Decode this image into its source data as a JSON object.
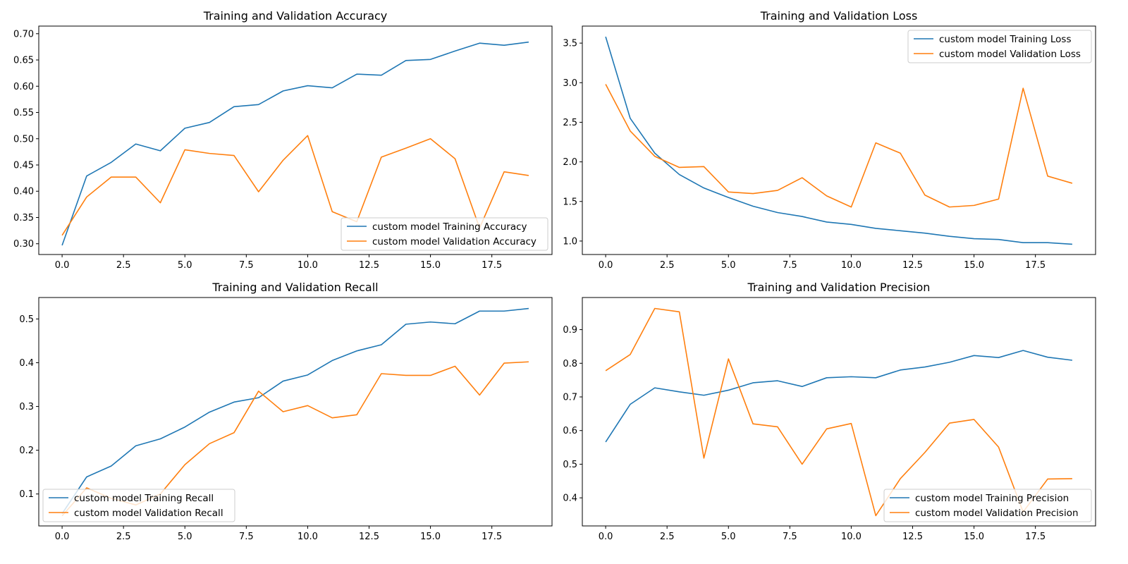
{
  "colors": {
    "training": "#1f77b4",
    "validation": "#ff7f0e"
  },
  "chart_data": [
    {
      "type": "line",
      "title": "Training and Validation Accuracy",
      "x": [
        0,
        1,
        2,
        3,
        4,
        5,
        6,
        7,
        8,
        9,
        10,
        11,
        12,
        13,
        14,
        15,
        16,
        17,
        18,
        19
      ],
      "xlim": [
        -0.95,
        19.95
      ],
      "ylim": [
        0.2795,
        0.7145
      ],
      "xticks": [
        0,
        2.5,
        5,
        7.5,
        10,
        12.5,
        15,
        17.5
      ],
      "xtick_labels": [
        "0.0",
        "2.5",
        "5.0",
        "7.5",
        "10.0",
        "12.5",
        "15.0",
        "17.5"
      ],
      "yticks": [
        0.3,
        0.35,
        0.4,
        0.45,
        0.5,
        0.55,
        0.6,
        0.65,
        0.7
      ],
      "ytick_labels": [
        "0.30",
        "0.35",
        "0.40",
        "0.45",
        "0.50",
        "0.55",
        "0.60",
        "0.65",
        "0.70"
      ],
      "legend_position": "lower-right",
      "series": [
        {
          "name": "custom model Training Accuracy",
          "role": "training",
          "values": [
            0.297,
            0.429,
            0.455,
            0.49,
            0.477,
            0.52,
            0.531,
            0.561,
            0.565,
            0.591,
            0.601,
            0.597,
            0.623,
            0.621,
            0.649,
            0.651,
            0.667,
            0.682,
            0.678,
            0.684
          ]
        },
        {
          "name": "custom model Validation Accuracy",
          "role": "validation",
          "values": [
            0.316,
            0.389,
            0.427,
            0.427,
            0.378,
            0.479,
            0.472,
            0.468,
            0.399,
            0.459,
            0.506,
            0.361,
            0.342,
            0.465,
            0.482,
            0.5,
            0.462,
            0.33,
            0.437,
            0.43
          ]
        }
      ]
    },
    {
      "type": "line",
      "title": "Training and Validation Loss",
      "x": [
        0,
        1,
        2,
        3,
        4,
        5,
        6,
        7,
        8,
        9,
        10,
        11,
        12,
        13,
        14,
        15,
        16,
        17,
        18,
        19
      ],
      "xlim": [
        -0.95,
        19.95
      ],
      "ylim": [
        0.83,
        3.715
      ],
      "xticks": [
        0,
        2.5,
        5,
        7.5,
        10,
        12.5,
        15,
        17.5
      ],
      "xtick_labels": [
        "0.0",
        "2.5",
        "5.0",
        "7.5",
        "10.0",
        "12.5",
        "15.0",
        "17.5"
      ],
      "yticks": [
        1.0,
        1.5,
        2.0,
        2.5,
        3.0,
        3.5
      ],
      "ytick_labels": [
        "1.0",
        "1.5",
        "2.0",
        "2.5",
        "3.0",
        "3.5"
      ],
      "legend_position": "upper-right",
      "series": [
        {
          "name": "custom model Training Loss",
          "role": "training",
          "values": [
            3.58,
            2.55,
            2.11,
            1.84,
            1.67,
            1.55,
            1.44,
            1.36,
            1.31,
            1.24,
            1.21,
            1.16,
            1.13,
            1.1,
            1.06,
            1.03,
            1.02,
            0.98,
            0.98,
            0.96
          ]
        },
        {
          "name": "custom model Validation Loss",
          "role": "validation",
          "values": [
            2.98,
            2.39,
            2.07,
            1.93,
            1.94,
            1.62,
            1.6,
            1.64,
            1.8,
            1.57,
            1.43,
            2.24,
            2.11,
            1.58,
            1.43,
            1.45,
            1.53,
            2.93,
            1.82,
            1.73
          ]
        }
      ]
    },
    {
      "type": "line",
      "title": "Training and Validation Recall",
      "x": [
        0,
        1,
        2,
        3,
        4,
        5,
        6,
        7,
        8,
        9,
        10,
        11,
        12,
        13,
        14,
        15,
        16,
        17,
        18,
        19
      ],
      "xlim": [
        -0.95,
        19.95
      ],
      "ylim": [
        0.027,
        0.549
      ],
      "xticks": [
        0,
        2.5,
        5,
        7.5,
        10,
        12.5,
        15,
        17.5
      ],
      "xtick_labels": [
        "0.0",
        "2.5",
        "5.0",
        "7.5",
        "10.0",
        "12.5",
        "15.0",
        "17.5"
      ],
      "yticks": [
        0.1,
        0.2,
        0.3,
        0.4,
        0.5
      ],
      "ytick_labels": [
        "0.1",
        "0.2",
        "0.3",
        "0.4",
        "0.5"
      ],
      "legend_position": "lower-left",
      "series": [
        {
          "name": "custom model Training Recall",
          "role": "training",
          "values": [
            0.055,
            0.139,
            0.164,
            0.21,
            0.226,
            0.253,
            0.287,
            0.31,
            0.32,
            0.358,
            0.372,
            0.405,
            0.427,
            0.441,
            0.488,
            0.493,
            0.489,
            0.518,
            0.518,
            0.524
          ]
        },
        {
          "name": "custom model Validation Recall",
          "role": "validation",
          "values": [
            0.05,
            0.114,
            0.09,
            0.075,
            0.1,
            0.167,
            0.215,
            0.24,
            0.335,
            0.288,
            0.302,
            0.274,
            0.281,
            0.375,
            0.371,
            0.371,
            0.392,
            0.326,
            0.399,
            0.402
          ]
        }
      ]
    },
    {
      "type": "line",
      "title": "Training and Validation Precision",
      "x": [
        0,
        1,
        2,
        3,
        4,
        5,
        6,
        7,
        8,
        9,
        10,
        11,
        12,
        13,
        14,
        15,
        16,
        17,
        18,
        19
      ],
      "xlim": [
        -0.95,
        19.95
      ],
      "ylim": [
        0.3165,
        0.9955
      ],
      "xticks": [
        0,
        2.5,
        5,
        7.5,
        10,
        12.5,
        15,
        17.5
      ],
      "xtick_labels": [
        "0.0",
        "2.5",
        "5.0",
        "7.5",
        "10.0",
        "12.5",
        "15.0",
        "17.5"
      ],
      "yticks": [
        0.4,
        0.5,
        0.6,
        0.7,
        0.8,
        0.9
      ],
      "ytick_labels": [
        "0.4",
        "0.5",
        "0.6",
        "0.7",
        "0.8",
        "0.9"
      ],
      "legend_position": "lower-right",
      "series": [
        {
          "name": "custom model Training Precision",
          "role": "training",
          "values": [
            0.566,
            0.678,
            0.727,
            0.715,
            0.705,
            0.72,
            0.742,
            0.748,
            0.731,
            0.757,
            0.76,
            0.757,
            0.78,
            0.789,
            0.803,
            0.823,
            0.817,
            0.838,
            0.818,
            0.809
          ]
        },
        {
          "name": "custom model Validation Precision",
          "role": "validation",
          "values": [
            0.778,
            0.826,
            0.963,
            0.953,
            0.518,
            0.813,
            0.62,
            0.611,
            0.5,
            0.605,
            0.621,
            0.347,
            0.457,
            0.535,
            0.622,
            0.633,
            0.551,
            0.358,
            0.456,
            0.457
          ]
        }
      ]
    }
  ]
}
